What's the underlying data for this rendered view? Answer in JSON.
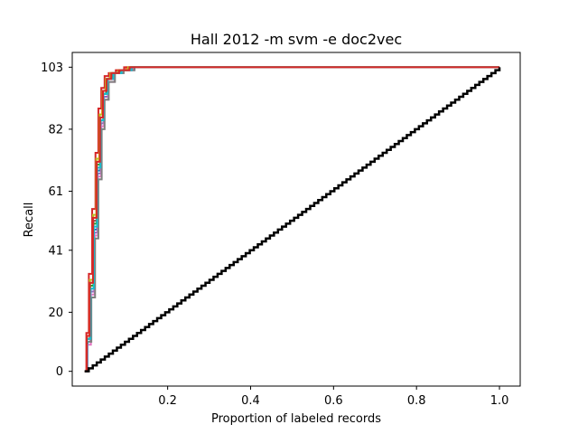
{
  "chart_data": {
    "type": "line",
    "title": "Hall 2012 -m svm -e doc2vec",
    "xlabel": "Proportion of labeled records",
    "ylabel": "Recall",
    "xlim": [
      -0.03,
      1.05
    ],
    "ylim": [
      -5,
      108
    ],
    "x_ticks": [
      0.2,
      0.4,
      0.6,
      0.8,
      1.0
    ],
    "x_tick_labels": [
      "0.2",
      "0.4",
      "0.6",
      "0.8",
      "1.0"
    ],
    "y_ticks": [
      0,
      20,
      41,
      61,
      82,
      103
    ],
    "y_tick_labels": [
      "0",
      "20",
      "41",
      "61",
      "82",
      "103"
    ],
    "grid": false,
    "random_baseline": {
      "x": [
        0.0,
        1.0
      ],
      "y": [
        0,
        103
      ],
      "color": "#000000",
      "step_count": 103
    },
    "series": [
      {
        "color": "#1f77b4",
        "x": [
          0.0,
          0.007,
          0.014,
          0.022,
          0.03,
          0.038,
          0.045,
          0.055,
          0.07,
          0.09,
          0.12,
          0.17,
          1.0
        ],
        "y": [
          0,
          10,
          28,
          48,
          68,
          85,
          94,
          99,
          101,
          102,
          103,
          103,
          103
        ]
      },
      {
        "color": "#ff7f0e",
        "x": [
          0.0,
          0.005,
          0.012,
          0.02,
          0.028,
          0.035,
          0.042,
          0.05,
          0.06,
          0.08,
          0.1,
          1.0
        ],
        "y": [
          0,
          12,
          31,
          52,
          71,
          87,
          95,
          99,
          101,
          102,
          103,
          103
        ]
      },
      {
        "color": "#2ca02c",
        "x": [
          0.0,
          0.006,
          0.013,
          0.021,
          0.029,
          0.037,
          0.044,
          0.052,
          0.065,
          0.085,
          0.11,
          1.0
        ],
        "y": [
          0,
          11,
          29,
          50,
          70,
          86,
          94,
          99,
          101,
          102,
          103,
          103
        ]
      },
      {
        "color": "#d62728",
        "x": [
          0.0,
          0.004,
          0.01,
          0.018,
          0.026,
          0.033,
          0.04,
          0.048,
          0.058,
          0.075,
          0.095,
          1.0
        ],
        "y": [
          0,
          13,
          33,
          55,
          74,
          89,
          96,
          100,
          101,
          102,
          103,
          103
        ]
      },
      {
        "color": "#9467bd",
        "x": [
          0.0,
          0.006,
          0.014,
          0.023,
          0.031,
          0.039,
          0.046,
          0.056,
          0.07,
          0.09,
          0.115,
          1.0
        ],
        "y": [
          0,
          10,
          27,
          47,
          67,
          84,
          93,
          99,
          101,
          102,
          103,
          103
        ]
      },
      {
        "color": "#8c564b",
        "x": [
          0.0,
          0.005,
          0.013,
          0.021,
          0.03,
          0.038,
          0.045,
          0.054,
          0.068,
          0.088,
          0.112,
          1.0
        ],
        "y": [
          0,
          11,
          30,
          51,
          69,
          85,
          94,
          99,
          101,
          102,
          103,
          103
        ]
      },
      {
        "color": "#e377c2",
        "x": [
          0.0,
          0.007,
          0.015,
          0.024,
          0.032,
          0.04,
          0.047,
          0.057,
          0.072,
          0.092,
          0.118,
          1.0
        ],
        "y": [
          0,
          9,
          26,
          46,
          66,
          83,
          92,
          98,
          101,
          102,
          103,
          103
        ]
      },
      {
        "color": "#7f7f7f",
        "x": [
          0.0,
          0.006,
          0.016,
          0.025,
          0.033,
          0.041,
          0.048,
          0.058,
          0.073,
          0.094,
          0.12,
          1.0
        ],
        "y": [
          0,
          10,
          25,
          45,
          65,
          82,
          92,
          98,
          101,
          102,
          103,
          103
        ]
      },
      {
        "color": "#bcbd22",
        "x": [
          0.0,
          0.005,
          0.012,
          0.02,
          0.028,
          0.036,
          0.043,
          0.051,
          0.062,
          0.082,
          0.105,
          1.0
        ],
        "y": [
          0,
          12,
          31,
          53,
          72,
          87,
          95,
          99,
          101,
          102,
          103,
          103
        ]
      },
      {
        "color": "#17becf",
        "x": [
          0.0,
          0.006,
          0.014,
          0.022,
          0.03,
          0.038,
          0.045,
          0.055,
          0.069,
          0.089,
          0.113,
          1.0
        ],
        "y": [
          0,
          11,
          28,
          49,
          69,
          85,
          94,
          99,
          101,
          102,
          103,
          103
        ]
      },
      {
        "color": "#d62728",
        "x": [
          0.0,
          0.005,
          0.012,
          0.02,
          0.029,
          0.037,
          0.044,
          0.053,
          0.064,
          0.083,
          0.108,
          1.0
        ],
        "y": [
          0,
          12,
          30,
          52,
          71,
          86,
          95,
          99,
          101,
          102,
          103,
          103
        ]
      }
    ]
  }
}
